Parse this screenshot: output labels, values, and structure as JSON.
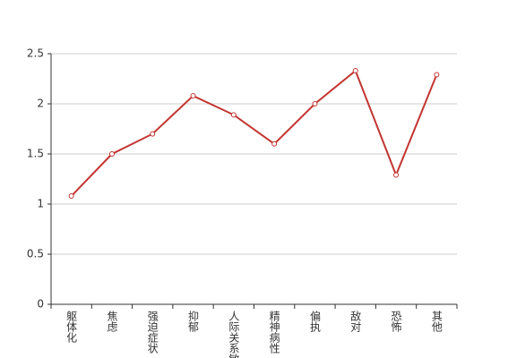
{
  "chart_data": {
    "type": "line",
    "categories": [
      "躯体化",
      "焦虑",
      "强迫症状",
      "抑郁",
      "人际关系敏感",
      "精神病性",
      "偏执",
      "敌对",
      "恐怖",
      "其他"
    ],
    "values": [
      1.08,
      1.5,
      1.7,
      2.08,
      1.89,
      1.6,
      2.0,
      2.33,
      1.29,
      2.29
    ],
    "color": "#c23531",
    "ylim": [
      0,
      2.5
    ],
    "yticks": [
      0,
      0.5,
      1,
      1.5,
      2,
      2.5
    ],
    "grid": true
  }
}
